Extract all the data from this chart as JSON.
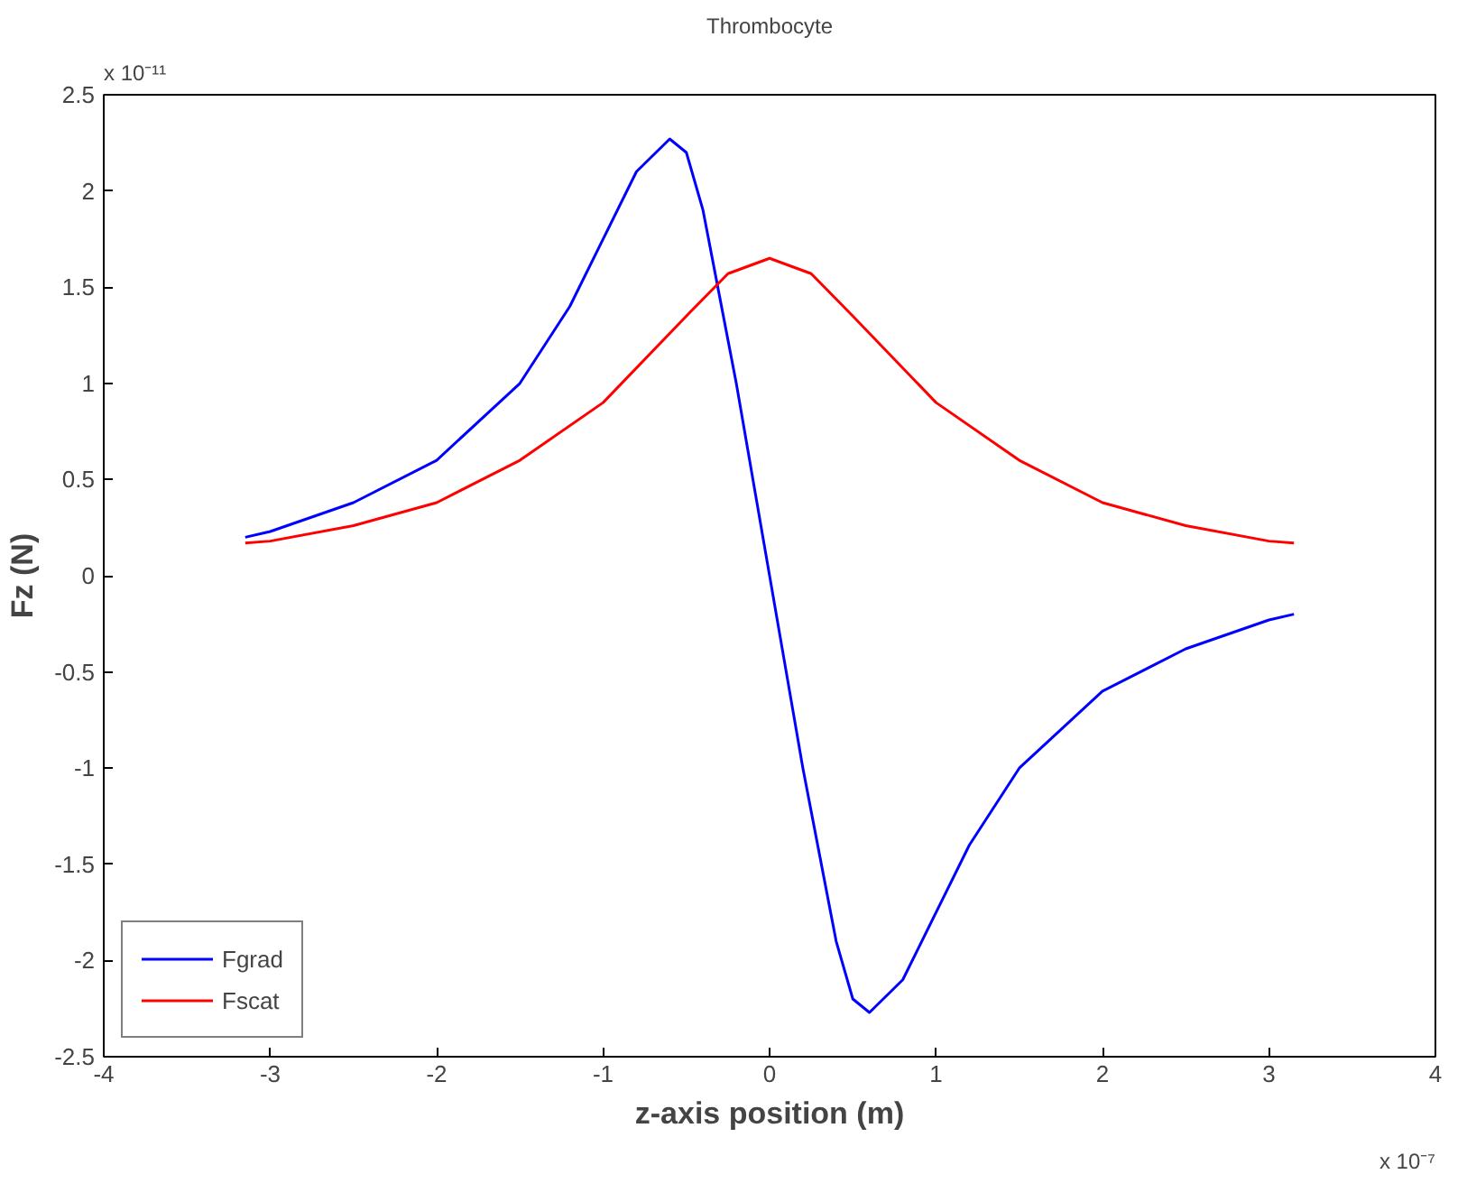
{
  "chart_data": {
    "type": "line",
    "title": "Thrombocyte",
    "xlabel": "z-axis position (m)",
    "ylabel": "Fz (N)",
    "annotations": [
      "x 10⁻¹¹",
      "x 10⁻⁷"
    ],
    "xlim": [
      -4,
      4
    ],
    "xticks": [
      -4,
      -3,
      -2,
      -1,
      0,
      1,
      2,
      3,
      4
    ],
    "ylim": [
      -2.5,
      2.5
    ],
    "yticks": [
      -2.5,
      -2,
      -1.5,
      -1,
      -0.5,
      0,
      0.5,
      1,
      1.5,
      2,
      2.5
    ],
    "grid": false,
    "legend": "bottom left",
    "line_style": "solid",
    "series": [
      {
        "name": "Fgrad",
        "color": "#0000ff",
        "x": [
          -3.15,
          -3,
          -2.5,
          -2,
          -1.5,
          -1.2,
          -1,
          -0.8,
          -0.6,
          -0.5,
          -0.4,
          -0.3,
          -0.2,
          -0.1,
          0,
          0.1,
          0.2,
          0.3,
          0.4,
          0.5,
          0.6,
          0.8,
          1,
          1.2,
          1.5,
          2,
          2.5,
          3,
          3.15
        ],
        "values": [
          0.2,
          0.23,
          0.38,
          0.6,
          1.0,
          1.4,
          1.75,
          2.1,
          2.27,
          2.2,
          1.9,
          1.45,
          1.0,
          0.5,
          0,
          -0.5,
          -1.0,
          -1.45,
          -1.9,
          -2.2,
          -2.27,
          -2.1,
          -1.75,
          -1.4,
          -1.0,
          -0.6,
          -0.38,
          -0.23,
          -0.2
        ]
      },
      {
        "name": "Fscat",
        "color": "#ff0000",
        "x": [
          -3.15,
          -3,
          -2.5,
          -2,
          -1.5,
          -1,
          -0.5,
          -0.25,
          0,
          0.25,
          0.5,
          1,
          1.5,
          2,
          2.5,
          3,
          3.15
        ],
        "values": [
          0.17,
          0.18,
          0.26,
          0.38,
          0.6,
          0.9,
          1.35,
          1.57,
          1.65,
          1.57,
          1.35,
          0.9,
          0.6,
          0.38,
          0.26,
          0.18,
          0.17
        ]
      }
    ]
  }
}
